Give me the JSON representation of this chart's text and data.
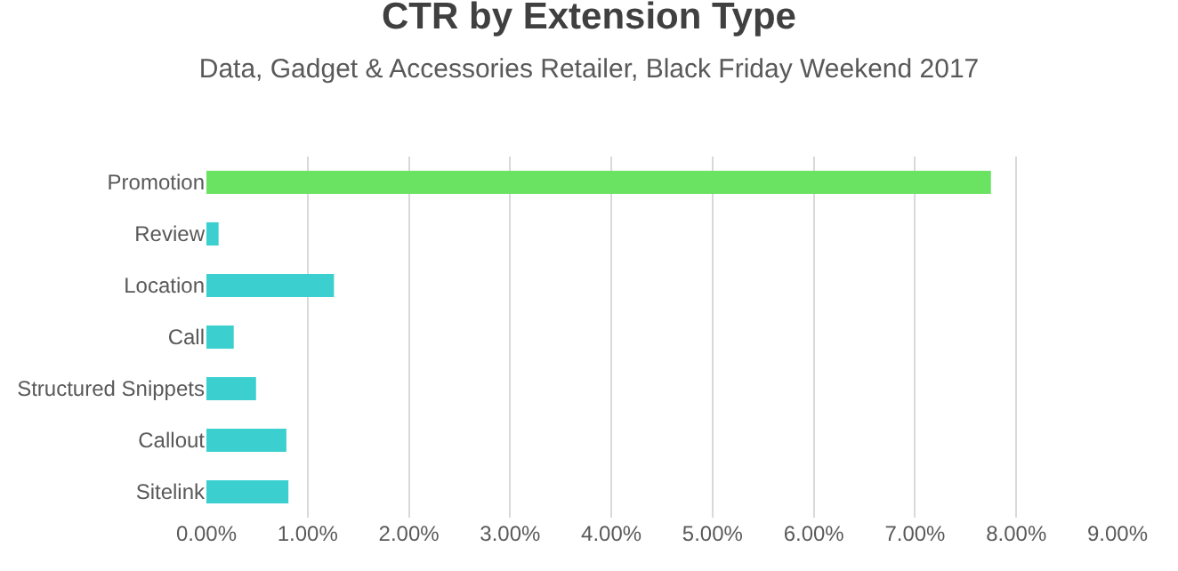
{
  "chart_data": {
    "type": "bar",
    "orientation": "horizontal",
    "title": "CTR by Extension Type",
    "subtitle": "Data, Gadget & Accessories Retailer, Black Friday Weekend 2017",
    "categories": [
      "Promotion",
      "Review",
      "Location",
      "Call",
      "Structured Snippets",
      "Callout",
      "Sitelink"
    ],
    "values": [
      7.75,
      0.12,
      1.26,
      0.27,
      0.49,
      0.79,
      0.81
    ],
    "colors": [
      "#6ae262",
      "#3ccfcf",
      "#3ccfcf",
      "#3ccfcf",
      "#3ccfcf",
      "#3ccfcf",
      "#3ccfcf"
    ],
    "xlim": [
      0,
      9
    ],
    "xticks": [
      {
        "value": 0,
        "label": "0.00%"
      },
      {
        "value": 1,
        "label": "1.00%"
      },
      {
        "value": 2,
        "label": "2.00%"
      },
      {
        "value": 3,
        "label": "3.00%"
      },
      {
        "value": 4,
        "label": "4.00%"
      },
      {
        "value": 5,
        "label": "5.00%"
      },
      {
        "value": 6,
        "label": "6.00%"
      },
      {
        "value": 7,
        "label": "7.00%"
      },
      {
        "value": 8,
        "label": "8.00%"
      },
      {
        "value": 9,
        "label": "9.00%"
      }
    ],
    "grid": "x",
    "legend": false
  }
}
